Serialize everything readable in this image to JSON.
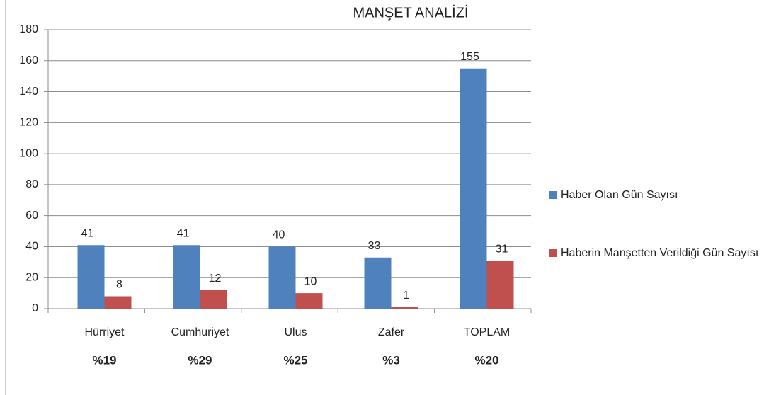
{
  "chart_data": {
    "type": "bar",
    "title": "MANŞET ANALİZİ",
    "categories": [
      "Hürriyet",
      "Cumhuriyet",
      "Ulus",
      "Zafer",
      "TOPLAM"
    ],
    "series": [
      {
        "name": "Haber Olan Gün Sayısı",
        "color": "#4f81bd",
        "values": [
          41,
          41,
          40,
          33,
          155
        ]
      },
      {
        "name": "Haberin Manşetten Verildiği Gün Sayısı",
        "color": "#c0504d",
        "values": [
          8,
          12,
          10,
          1,
          31
        ]
      }
    ],
    "annotations": [
      "%19",
      "%29",
      "%25",
      "%3",
      "%20"
    ],
    "ylim": [
      0,
      180
    ],
    "yticks": [
      0,
      20,
      40,
      60,
      80,
      100,
      120,
      140,
      160,
      180
    ],
    "grid": true,
    "legend": "right"
  }
}
